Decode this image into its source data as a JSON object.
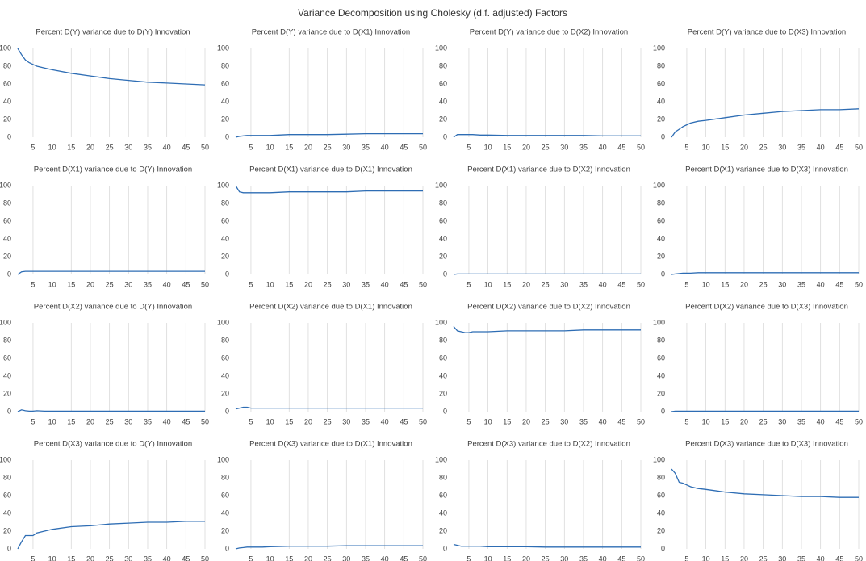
{
  "title": "Variance Decomposition using Cholesky (d.f. adjusted) Factors",
  "chart_data": [
    {
      "type": "line",
      "title": "Percent D(Y) variance due to D(Y) Innovation",
      "x": [
        1,
        2,
        3,
        4,
        5,
        6,
        8,
        10,
        15,
        20,
        25,
        30,
        35,
        40,
        45,
        50
      ],
      "values": [
        100,
        93,
        87,
        84,
        82,
        80,
        78,
        76,
        72,
        69,
        66,
        64,
        62,
        61,
        60,
        59
      ],
      "color": "#2e6db4",
      "xlim": [
        1,
        50
      ],
      "ylim": [
        0,
        100
      ],
      "xticks": [
        5,
        10,
        15,
        20,
        25,
        30,
        35,
        40,
        45,
        50
      ],
      "yticks": [
        0,
        20,
        40,
        60,
        80,
        100
      ],
      "grid": true
    },
    {
      "type": "line",
      "title": "Percent D(Y) variance due to D(X1) Innovation",
      "x": [
        1,
        2,
        3,
        4,
        5,
        6,
        8,
        10,
        15,
        20,
        25,
        30,
        35,
        40,
        45,
        50
      ],
      "values": [
        0,
        1,
        1.5,
        2,
        2,
        2,
        2,
        2,
        3,
        3,
        3,
        3.5,
        4,
        4,
        4,
        4
      ],
      "color": "#2e6db4",
      "xlim": [
        1,
        50
      ],
      "ylim": [
        0,
        100
      ],
      "xticks": [
        5,
        10,
        15,
        20,
        25,
        30,
        35,
        40,
        45,
        50
      ],
      "yticks": [
        0,
        20,
        40,
        60,
        80,
        100
      ],
      "grid": true
    },
    {
      "type": "line",
      "title": "Percent D(Y) variance due to D(X2) Innovation",
      "x": [
        1,
        2,
        3,
        4,
        5,
        6,
        8,
        10,
        15,
        20,
        25,
        30,
        35,
        40,
        45,
        50
      ],
      "values": [
        0,
        3,
        3,
        3,
        3,
        3,
        2.5,
        2.5,
        2,
        2,
        2,
        2,
        2,
        1.5,
        1.5,
        1.5
      ],
      "color": "#2e6db4",
      "xlim": [
        1,
        50
      ],
      "ylim": [
        0,
        100
      ],
      "xticks": [
        5,
        10,
        15,
        20,
        25,
        30,
        35,
        40,
        45,
        50
      ],
      "yticks": [
        0,
        20,
        40,
        60,
        80,
        100
      ],
      "grid": true
    },
    {
      "type": "line",
      "title": "Percent D(Y) variance due to D(X3) Innovation",
      "x": [
        1,
        2,
        3,
        4,
        5,
        6,
        8,
        10,
        15,
        20,
        25,
        30,
        35,
        40,
        45,
        50
      ],
      "values": [
        0,
        6,
        9,
        12,
        14,
        16,
        18,
        19,
        22,
        25,
        27,
        29,
        30,
        31,
        31,
        32
      ],
      "color": "#2e6db4",
      "xlim": [
        1,
        50
      ],
      "ylim": [
        0,
        100
      ],
      "xticks": [
        5,
        10,
        15,
        20,
        25,
        30,
        35,
        40,
        45,
        50
      ],
      "yticks": [
        0,
        20,
        40,
        60,
        80,
        100
      ],
      "grid": true
    },
    {
      "type": "line",
      "title": "Percent D(X1) variance due to D(Y) Innovation",
      "x": [
        1,
        2,
        3,
        4,
        5,
        6,
        8,
        10,
        15,
        20,
        25,
        30,
        35,
        40,
        45,
        50
      ],
      "values": [
        0,
        3,
        3.5,
        3.5,
        3.5,
        3.5,
        3.5,
        3.5,
        3.5,
        3.5,
        3.5,
        3.5,
        3.5,
        3.5,
        3.5,
        3.5
      ],
      "color": "#2e6db4",
      "xlim": [
        1,
        50
      ],
      "ylim": [
        0,
        100
      ],
      "xticks": [
        5,
        10,
        15,
        20,
        25,
        30,
        35,
        40,
        45,
        50
      ],
      "yticks": [
        0,
        20,
        40,
        60,
        80,
        100
      ],
      "grid": true
    },
    {
      "type": "line",
      "title": "Percent D(X1) variance due to D(X1) Innovation",
      "x": [
        1,
        2,
        3,
        4,
        5,
        6,
        8,
        10,
        15,
        20,
        25,
        30,
        35,
        40,
        45,
        50
      ],
      "values": [
        100,
        93,
        92,
        92,
        92,
        92,
        92,
        92,
        93,
        93,
        93,
        93,
        94,
        94,
        94,
        94
      ],
      "color": "#2e6db4",
      "xlim": [
        1,
        50
      ],
      "ylim": [
        0,
        100
      ],
      "xticks": [
        5,
        10,
        15,
        20,
        25,
        30,
        35,
        40,
        45,
        50
      ],
      "yticks": [
        0,
        20,
        40,
        60,
        80,
        100
      ],
      "grid": true
    },
    {
      "type": "line",
      "title": "Percent D(X1) variance due to D(X2) Innovation",
      "x": [
        1,
        2,
        3,
        4,
        5,
        6,
        8,
        10,
        15,
        20,
        25,
        30,
        35,
        40,
        45,
        50
      ],
      "values": [
        0,
        0.5,
        0.5,
        0.5,
        0.5,
        0.5,
        0.5,
        0.5,
        0.5,
        0.5,
        0.5,
        0.5,
        0.5,
        0.5,
        0.5,
        0.5
      ],
      "color": "#2e6db4",
      "xlim": [
        1,
        50
      ],
      "ylim": [
        0,
        100
      ],
      "xticks": [
        5,
        10,
        15,
        20,
        25,
        30,
        35,
        40,
        45,
        50
      ],
      "yticks": [
        0,
        20,
        40,
        60,
        80,
        100
      ],
      "grid": true
    },
    {
      "type": "line",
      "title": "Percent D(X1) variance due to D(X3) Innovation",
      "x": [
        1,
        2,
        3,
        4,
        5,
        6,
        8,
        10,
        15,
        20,
        25,
        30,
        35,
        40,
        45,
        50
      ],
      "values": [
        0,
        0.5,
        1,
        1.5,
        1.5,
        1.5,
        2,
        2,
        2,
        2,
        2,
        2,
        2,
        2,
        2,
        2
      ],
      "color": "#2e6db4",
      "xlim": [
        1,
        50
      ],
      "ylim": [
        0,
        100
      ],
      "xticks": [
        5,
        10,
        15,
        20,
        25,
        30,
        35,
        40,
        45,
        50
      ],
      "yticks": [
        0,
        20,
        40,
        60,
        80,
        100
      ],
      "grid": true
    },
    {
      "type": "line",
      "title": "Percent D(X2) variance due to D(Y) Innovation",
      "x": [
        1,
        2,
        3,
        4,
        5,
        6,
        8,
        10,
        15,
        20,
        25,
        30,
        35,
        40,
        45,
        50
      ],
      "values": [
        0,
        2,
        1,
        0.5,
        0.5,
        1,
        0.5,
        0.5,
        0.5,
        0.5,
        0.5,
        0.5,
        0.5,
        0.5,
        0.5,
        0.5
      ],
      "color": "#2e6db4",
      "xlim": [
        1,
        50
      ],
      "ylim": [
        0,
        100
      ],
      "xticks": [
        5,
        10,
        15,
        20,
        25,
        30,
        35,
        40,
        45,
        50
      ],
      "yticks": [
        0,
        20,
        40,
        60,
        80,
        100
      ],
      "grid": true
    },
    {
      "type": "line",
      "title": "Percent D(X2) variance due to D(X1) Innovation",
      "x": [
        1,
        2,
        3,
        4,
        5,
        6,
        8,
        10,
        15,
        20,
        25,
        30,
        35,
        40,
        45,
        50
      ],
      "values": [
        3,
        4,
        5,
        5,
        4,
        4,
        4,
        4,
        4,
        4,
        4,
        4,
        4,
        4,
        4,
        4
      ],
      "color": "#2e6db4",
      "xlim": [
        1,
        50
      ],
      "ylim": [
        0,
        100
      ],
      "xticks": [
        5,
        10,
        15,
        20,
        25,
        30,
        35,
        40,
        45,
        50
      ],
      "yticks": [
        0,
        20,
        40,
        60,
        80,
        100
      ],
      "grid": true
    },
    {
      "type": "line",
      "title": "Percent D(X2) variance due to D(X2) Innovation",
      "x": [
        1,
        2,
        3,
        4,
        5,
        6,
        8,
        10,
        15,
        20,
        25,
        30,
        35,
        40,
        45,
        50
      ],
      "values": [
        96,
        91,
        90,
        89,
        89,
        90,
        90,
        90,
        91,
        91,
        91,
        91,
        92,
        92,
        92,
        92
      ],
      "color": "#2e6db4",
      "xlim": [
        1,
        50
      ],
      "ylim": [
        0,
        100
      ],
      "xticks": [
        5,
        10,
        15,
        20,
        25,
        30,
        35,
        40,
        45,
        50
      ],
      "yticks": [
        0,
        20,
        40,
        60,
        80,
        100
      ],
      "grid": true
    },
    {
      "type": "line",
      "title": "Percent D(X2) variance due to D(X3) Innovation",
      "x": [
        1,
        2,
        3,
        4,
        5,
        6,
        8,
        10,
        15,
        20,
        25,
        30,
        35,
        40,
        45,
        50
      ],
      "values": [
        0,
        0.5,
        0.5,
        0.5,
        0.5,
        0.5,
        0.5,
        0.5,
        0.5,
        0.5,
        0.5,
        0.5,
        0.5,
        0.5,
        0.5,
        0.5
      ],
      "color": "#2e6db4",
      "xlim": [
        1,
        50
      ],
      "ylim": [
        0,
        100
      ],
      "xticks": [
        5,
        10,
        15,
        20,
        25,
        30,
        35,
        40,
        45,
        50
      ],
      "yticks": [
        0,
        20,
        40,
        60,
        80,
        100
      ],
      "grid": true
    },
    {
      "type": "line",
      "title": "Percent D(X3) variance due to D(Y) Innovation",
      "x": [
        1,
        2,
        3,
        4,
        5,
        6,
        8,
        10,
        15,
        20,
        25,
        30,
        35,
        40,
        45,
        50
      ],
      "values": [
        0,
        8,
        15,
        15,
        15,
        18,
        20,
        22,
        25,
        26,
        28,
        29,
        30,
        30,
        31,
        31
      ],
      "color": "#2e6db4",
      "xlim": [
        1,
        50
      ],
      "ylim": [
        0,
        100
      ],
      "xticks": [
        5,
        10,
        15,
        20,
        25,
        30,
        35,
        40,
        45,
        50
      ],
      "yticks": [
        0,
        20,
        40,
        60,
        80,
        100
      ],
      "grid": true
    },
    {
      "type": "line",
      "title": "Percent D(X3) variance due to D(X1) Innovation",
      "x": [
        1,
        2,
        3,
        4,
        5,
        6,
        8,
        10,
        15,
        20,
        25,
        30,
        35,
        40,
        45,
        50
      ],
      "values": [
        0,
        1,
        1.5,
        2,
        2,
        2,
        2,
        2.5,
        3,
        3,
        3,
        3.5,
        3.5,
        3.5,
        3.5,
        3.5
      ],
      "color": "#2e6db4",
      "xlim": [
        1,
        50
      ],
      "ylim": [
        0,
        100
      ],
      "xticks": [
        5,
        10,
        15,
        20,
        25,
        30,
        35,
        40,
        45,
        50
      ],
      "yticks": [
        0,
        20,
        40,
        60,
        80,
        100
      ],
      "grid": true
    },
    {
      "type": "line",
      "title": "Percent D(X3) variance due to D(X2) Innovation",
      "x": [
        1,
        2,
        3,
        4,
        5,
        6,
        8,
        10,
        15,
        20,
        25,
        30,
        35,
        40,
        45,
        50
      ],
      "values": [
        5,
        4,
        3,
        3,
        3,
        3,
        3,
        2.5,
        2.5,
        2.5,
        2,
        2,
        2,
        2,
        2,
        2
      ],
      "color": "#2e6db4",
      "xlim": [
        1,
        50
      ],
      "ylim": [
        0,
        100
      ],
      "xticks": [
        5,
        10,
        15,
        20,
        25,
        30,
        35,
        40,
        45,
        50
      ],
      "yticks": [
        0,
        20,
        40,
        60,
        80,
        100
      ],
      "grid": true
    },
    {
      "type": "line",
      "title": "Percent D(X3) variance due to D(X3) Innovation",
      "x": [
        1,
        2,
        3,
        4,
        5,
        6,
        8,
        10,
        15,
        20,
        25,
        30,
        35,
        40,
        45,
        50
      ],
      "values": [
        90,
        85,
        75,
        74,
        72,
        70,
        68,
        67,
        64,
        62,
        61,
        60,
        59,
        59,
        58,
        58
      ],
      "color": "#2e6db4",
      "xlim": [
        1,
        50
      ],
      "ylim": [
        0,
        100
      ],
      "xticks": [
        5,
        10,
        15,
        20,
        25,
        30,
        35,
        40,
        45,
        50
      ],
      "yticks": [
        0,
        20,
        40,
        60,
        80,
        100
      ],
      "grid": true
    }
  ]
}
